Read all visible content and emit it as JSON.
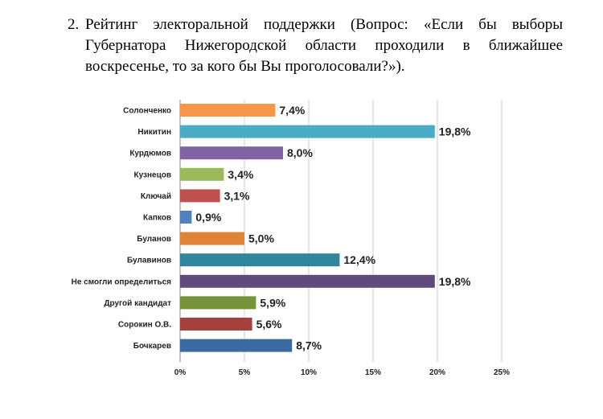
{
  "heading": {
    "number": "2.",
    "text": "Рейтинг электоральной поддержки (Вопрос: «Если бы выборы Губернатора Нижегородской области проходили в ближайшее воскресенье, то за кого бы Вы проголосовали?»)."
  },
  "chart_data": {
    "type": "bar",
    "orientation": "horizontal",
    "categories": [
      "Солонченко",
      "Никитин",
      "Курдюмов",
      "Кузнецов",
      "Ключай",
      "Капков",
      "Буланов",
      "Булавинов",
      "Не смогли определиться",
      "Другой кандидат",
      "Сорокин О.В.",
      "Бочкарев"
    ],
    "values": [
      7.4,
      19.8,
      8.0,
      3.4,
      3.1,
      0.9,
      5.0,
      12.4,
      19.8,
      5.9,
      5.6,
      8.7
    ],
    "value_labels": [
      "7,4%",
      "19,8%",
      "8,0%",
      "3,4%",
      "3,1%",
      "0,9%",
      "5,0%",
      "12,4%",
      "19,8%",
      "5,9%",
      "5,6%",
      "8,7%"
    ],
    "colors": [
      "#f79646",
      "#4bacc6",
      "#8064a2",
      "#9bbb59",
      "#c0504d",
      "#4f81bd",
      "#e28436",
      "#31859c",
      "#604a7b",
      "#77933c",
      "#a4403d",
      "#3c6ba3"
    ],
    "xticks": [
      "0%",
      "5%",
      "10%",
      "15%",
      "20%",
      "25%"
    ],
    "xlim": [
      0,
      25
    ],
    "grid": true
  }
}
